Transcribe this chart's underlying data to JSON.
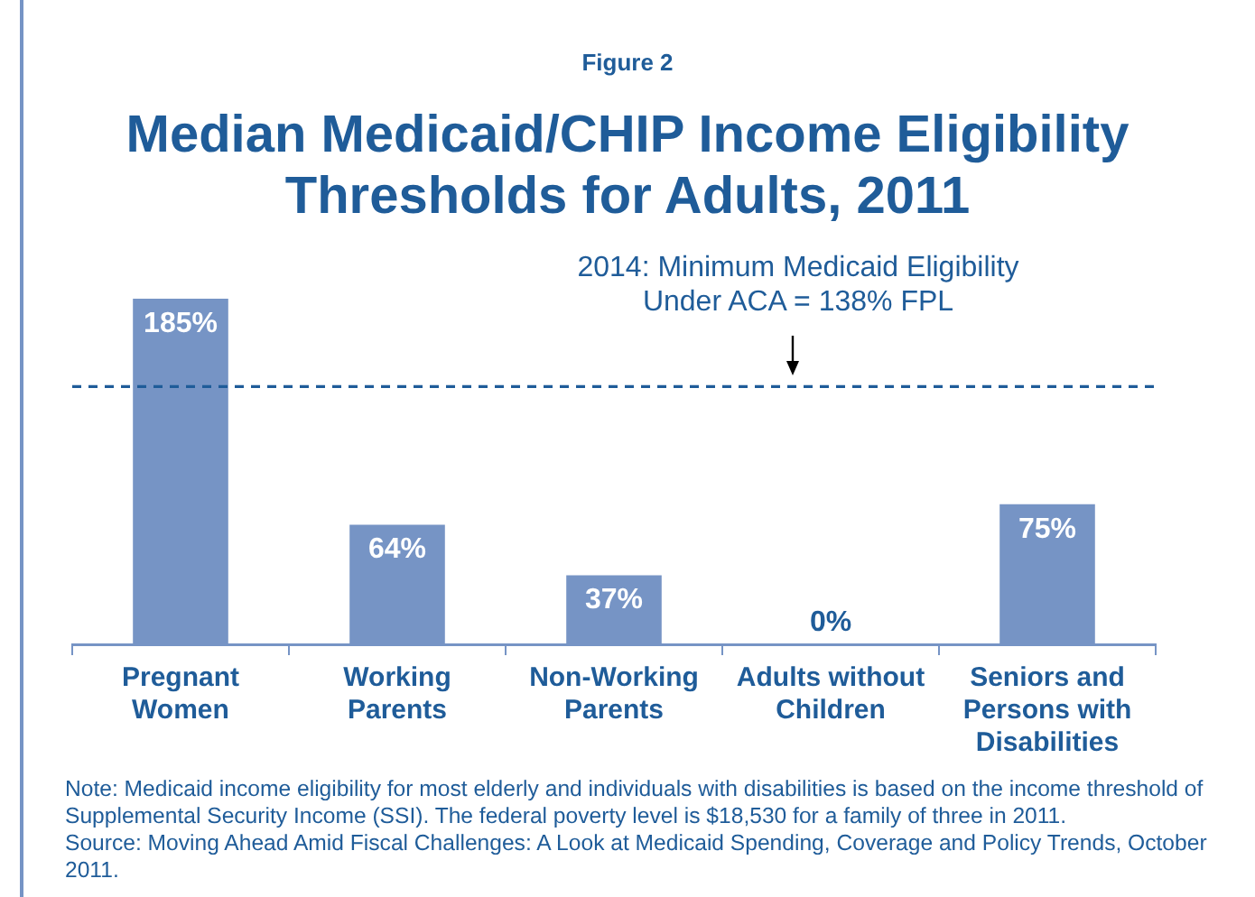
{
  "chart_data": {
    "type": "bar",
    "subtitle": "Figure 2",
    "title": "Median Medicaid/CHIP Income Eligibility Thresholds for Adults, 2011",
    "categories": [
      "Pregnant Women",
      "Working Parents",
      "Non-Working Parents",
      "Adults without Children",
      "Seniors and Persons with Disabilities"
    ],
    "values": [
      185,
      64,
      37,
      0,
      75
    ],
    "value_labels": [
      "185%",
      "64%",
      "37%",
      "0%",
      "75%"
    ],
    "color": "#7694c5",
    "tick_labels": "x",
    "grid": false,
    "legend": false,
    "ref_lines": [
      {
        "axis": "y",
        "value": 138,
        "label": "2014: Minimum Medicaid Eligibility Under ACA = 138% FPL",
        "color": "#1f5c99",
        "line_style": "dashed"
      }
    ],
    "annotations": [
      "Note: Medicaid income eligibility for most elderly and individuals with disabilities is based on the income threshold of Supplemental Security Income (SSI). The federal poverty level is $18,530 for a family of three in 2011.",
      "Source: Moving Ahead Amid Fiscal Challenges:  A Look at Medicaid Spending, Coverage and Policy Trends, October 2011."
    ]
  }
}
